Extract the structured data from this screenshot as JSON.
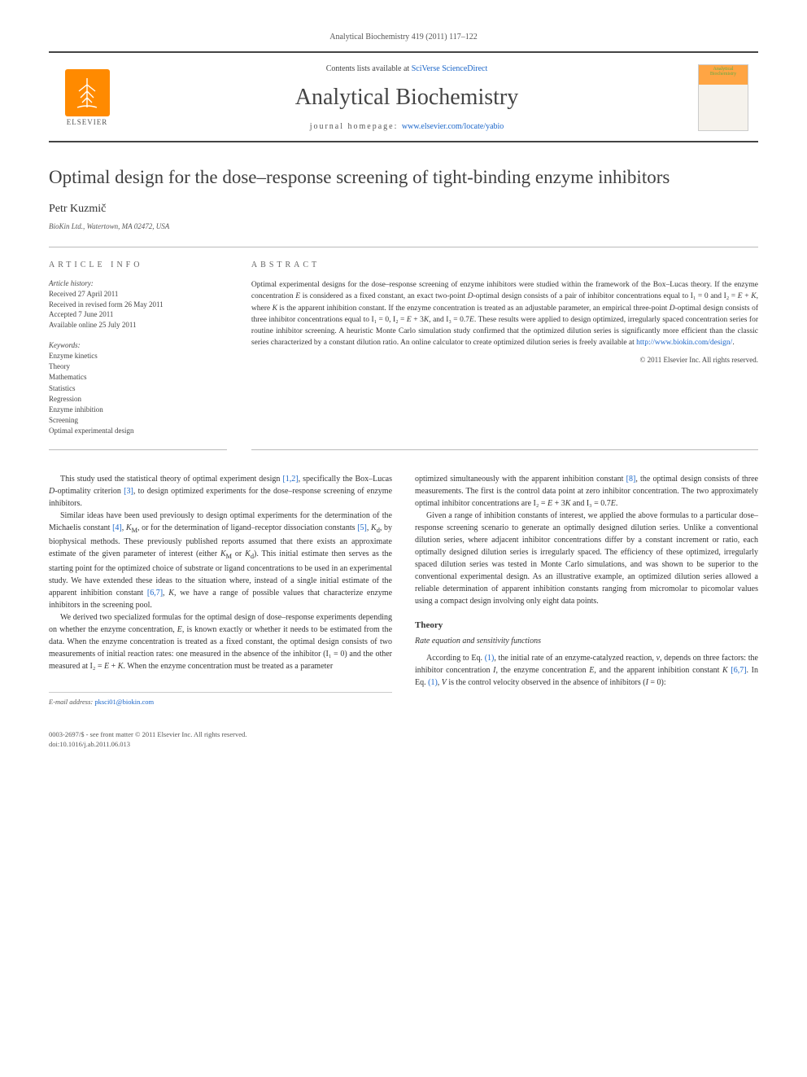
{
  "journal_ref": "Analytical Biochemistry 419 (2011) 117–122",
  "header": {
    "publisher": "ELSEVIER",
    "contents_prefix": "Contents lists available at ",
    "contents_link": "SciVerse ScienceDirect",
    "journal_name": "Analytical Biochemistry",
    "homepage_prefix": "journal homepage: ",
    "homepage_url": "www.elsevier.com/locate/yabio",
    "cover_label": "Analytical Biochemistry"
  },
  "article": {
    "title": "Optimal design for the dose–response screening of tight-binding enzyme inhibitors",
    "author": "Petr Kuzmič",
    "affiliation": "BioKin Ltd., Watertown, MA 02472, USA"
  },
  "info": {
    "label": "ARTICLE INFO",
    "history_label": "Article history:",
    "history": [
      "Received 27 April 2011",
      "Received in revised form 26 May 2011",
      "Accepted 7 June 2011",
      "Available online 25 July 2011"
    ],
    "keywords_label": "Keywords:",
    "keywords": [
      "Enzyme kinetics",
      "Theory",
      "Mathematics",
      "Statistics",
      "Regression",
      "Enzyme inhibition",
      "Screening",
      "Optimal experimental design"
    ]
  },
  "abstract": {
    "label": "ABSTRACT",
    "text": "Optimal experimental designs for the dose–response screening of enzyme inhibitors were studied within the framework of the Box–Lucas theory. If the enzyme concentration E is considered as a fixed constant, an exact two-point D-optimal design consists of a pair of inhibitor concentrations equal to I₁ = 0 and I₂ = E + K, where K is the apparent inhibition constant. If the enzyme concentration is treated as an adjustable parameter, an empirical three-point D-optimal design consists of three inhibitor concentrations equal to I₁ = 0, I₂ = E + 3K, and I₃ = 0.7E. These results were applied to design optimized, irregularly spaced concentration series for routine inhibitor screening. A heuristic Monte Carlo simulation study confirmed that the optimized dilution series is significantly more efficient than the classic series characterized by a constant dilution ratio. An online calculator to create optimized dilution series is freely available at ",
    "url": "http://www.biokin.com/design/",
    "url_suffix": ".",
    "copyright": "© 2011 Elsevier Inc. All rights reserved."
  },
  "body": {
    "left": [
      "This study used the statistical theory of optimal experiment design [1,2], specifically the Box–Lucas D-optimality criterion [3], to design optimized experiments for the dose–response screening of enzyme inhibitors.",
      "Similar ideas have been used previously to design optimal experiments for the determination of the Michaelis constant [4], K_M, or for the determination of ligand–receptor dissociation constants [5], K_d, by biophysical methods. These previously published reports assumed that there exists an approximate estimate of the given parameter of interest (either K_M or K_d). This initial estimate then serves as the starting point for the optimized choice of substrate or ligand concentrations to be used in an experimental study. We have extended these ideas to the situation where, instead of a single initial estimate of the apparent inhibition constant [6,7], K, we have a range of possible values that characterize enzyme inhibitors in the screening pool.",
      "We derived two specialized formulas for the optimal design of dose–response experiments depending on whether the enzyme concentration, E, is known exactly or whether it needs to be estimated from the data. When the enzyme concentration is treated as a fixed constant, the optimal design consists of two measurements of initial reaction rates: one measured in the absence of the inhibitor (I₁ = 0) and the other measured at I₂ = E + K. When the enzyme concentration must be treated as a parameter"
    ],
    "right": [
      "optimized simultaneously with the apparent inhibition constant [8], the optimal design consists of three measurements. The first is the control data point at zero inhibitor concentration. The two approximately optimal inhibitor concentrations are I₂ = E + 3K and I₃ = 0.7E.",
      "Given a range of inhibition constants of interest, we applied the above formulas to a particular dose–response screening scenario to generate an optimally designed dilution series. Unlike a conventional dilution series, where adjacent inhibitor concentrations differ by a constant increment or ratio, each optimally designed dilution series is irregularly spaced. The efficiency of these optimized, irregularly spaced dilution series was tested in Monte Carlo simulations, and was shown to be superior to the conventional experimental design. As an illustrative example, an optimized dilution series allowed a reliable determination of apparent inhibition constants ranging from micromolar to picomolar values using a compact design involving only eight data points."
    ],
    "theory_heading": "Theory",
    "rate_heading": "Rate equation and sensitivity functions",
    "theory_p": "According to Eq. (1), the initial rate of an enzyme-catalyzed reaction, v, depends on three factors: the inhibitor concentration I, the enzyme concentration E, and the apparent inhibition constant K [6,7]. In Eq. (1), V is the control velocity observed in the absence of inhibitors (I = 0):"
  },
  "footnote": {
    "email_label": "E-mail address: ",
    "email": "pksci01@biokin.com"
  },
  "footer": {
    "line1": "0003-2697/$ - see front matter © 2011 Elsevier Inc. All rights reserved.",
    "doi": "doi:10.1016/j.ab.2011.06.013"
  },
  "refs": {
    "r12": "[1,2]",
    "r3": "[3]",
    "r4": "[4]",
    "r5": "[5]",
    "r67": "[6,7]",
    "r8": "[8]"
  },
  "colors": {
    "link": "#1b66c9",
    "rule": "#444444",
    "text": "#333333",
    "elsevier_orange": "#ff8a00"
  }
}
